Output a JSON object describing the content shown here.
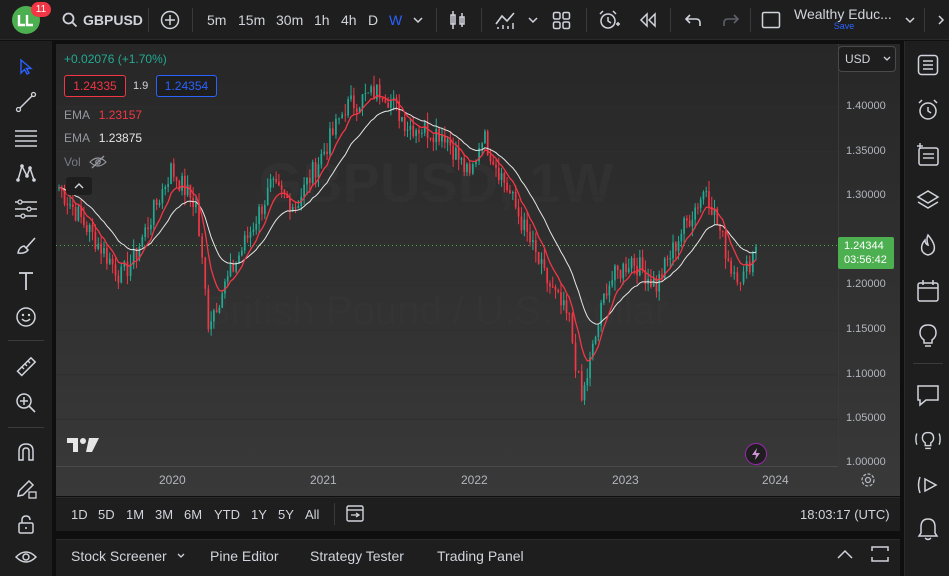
{
  "topbar": {
    "badge_count": "11",
    "symbol": "GBPUSD",
    "timeframes": [
      "5m",
      "15m",
      "30m",
      "1h",
      "4h",
      "D",
      "W"
    ],
    "active_timeframe": "W",
    "layout_name": "Wealthy Educ...",
    "layout_save": "Save"
  },
  "legend": {
    "change": "+0.02076 (+1.70%)",
    "bid": "1.24335",
    "spread": "1.9",
    "ask": "1.24354",
    "ema1_label": "EMA",
    "ema1_value": "1.23157",
    "ema2_label": "EMA",
    "ema2_value": "1.23875",
    "vol_label": "Vol"
  },
  "watermark": {
    "symbol": "GBPUSD, 1W",
    "name": "British Pound / U.S. Dollar"
  },
  "price_axis": {
    "currency": "USD",
    "ticks": [
      "1.40000",
      "1.35000",
      "1.30000",
      "1.25000",
      "1.20000",
      "1.15000",
      "1.10000",
      "1.05000",
      "1.00000"
    ],
    "last_price": "1.24344",
    "countdown": "03:56:42"
  },
  "time_axis": {
    "ticks": [
      "2020",
      "2021",
      "2022",
      "2023",
      "2024"
    ]
  },
  "bottom": {
    "ranges": [
      "1D",
      "5D",
      "1M",
      "3M",
      "6M",
      "YTD",
      "1Y",
      "5Y",
      "All"
    ],
    "clock": "18:03:17 (UTC)"
  },
  "panels": {
    "tabs": [
      "Stock Screener",
      "Pine Editor",
      "Strategy Tester",
      "Trading Panel"
    ]
  },
  "colors": {
    "up": "#22ab94",
    "down": "#f23645",
    "ema_fast": "#f23645",
    "ema_slow": "#e0e0e0",
    "last_price_bg": "#4caf50",
    "accent": "#2962ff"
  },
  "chart_data": {
    "type": "candlestick",
    "interval": "1W",
    "y_range": [
      1.0,
      1.43
    ],
    "x_range": [
      "2019-03",
      "2024-01"
    ],
    "current_price": 1.24344,
    "weekly_close": [
      {
        "date": "2019-03",
        "close": 1.31
      },
      {
        "date": "2019-05",
        "close": 1.27
      },
      {
        "date": "2019-08",
        "close": 1.21
      },
      {
        "date": "2019-09",
        "close": 1.23
      },
      {
        "date": "2019-12",
        "close": 1.33
      },
      {
        "date": "2020-02",
        "close": 1.29
      },
      {
        "date": "2020-03",
        "close": 1.16
      },
      {
        "date": "2020-05",
        "close": 1.22
      },
      {
        "date": "2020-08",
        "close": 1.31
      },
      {
        "date": "2020-10",
        "close": 1.29
      },
      {
        "date": "2021-01",
        "close": 1.37
      },
      {
        "date": "2021-02",
        "close": 1.4
      },
      {
        "date": "2021-05",
        "close": 1.42
      },
      {
        "date": "2021-07",
        "close": 1.38
      },
      {
        "date": "2021-10",
        "close": 1.37
      },
      {
        "date": "2021-12",
        "close": 1.32
      },
      {
        "date": "2022-01",
        "close": 1.37
      },
      {
        "date": "2022-03",
        "close": 1.31
      },
      {
        "date": "2022-06",
        "close": 1.21
      },
      {
        "date": "2022-08",
        "close": 1.16
      },
      {
        "date": "2022-09",
        "close": 1.07
      },
      {
        "date": "2022-11",
        "close": 1.2
      },
      {
        "date": "2023-01",
        "close": 1.23
      },
      {
        "date": "2023-03",
        "close": 1.2
      },
      {
        "date": "2023-05",
        "close": 1.26
      },
      {
        "date": "2023-07",
        "close": 1.31
      },
      {
        "date": "2023-09",
        "close": 1.22
      },
      {
        "date": "2023-10",
        "close": 1.21
      },
      {
        "date": "2023-11",
        "close": 1.24344
      }
    ]
  }
}
